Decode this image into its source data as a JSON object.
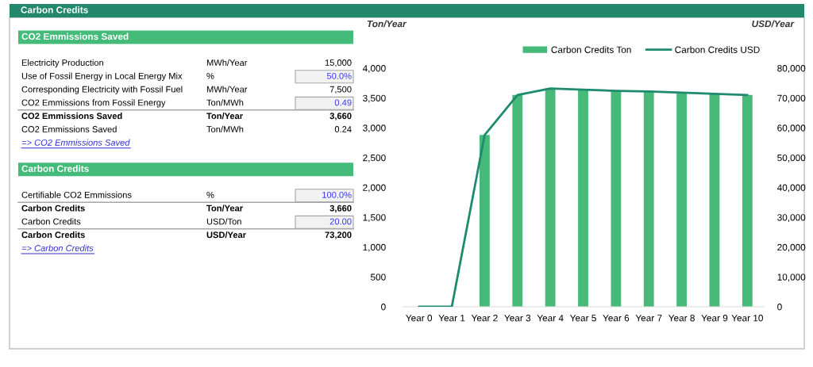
{
  "chart_data": [
    {
      "type": "other",
      "title": "Carbon Credits",
      "annotations": [
        "CO2 Emmissions Saved",
        "Electricity Production",
        "MWh/Year",
        "15,000",
        "Use of Fossil Energy in Local Energy Mix",
        "%",
        "50.0%",
        "Corresponding Electricity with Fossil Fuel",
        "MWh/Year",
        "7,500",
        "CO2 Emmissions from Fossil Energy",
        "Ton/MWh",
        "0.49",
        "CO2 Emmissions Saved",
        "Ton/Year",
        "3,660",
        "CO2 Emmissions Saved",
        "Ton/MWh",
        "0.24",
        "=> CO2 Emmissions Saved",
        "Carbon Credits",
        "Certifiable CO2 Emmissions",
        "%",
        "100.0%",
        "Carbon Credits",
        "Ton/Year",
        "3,660",
        "Carbon Credits",
        "USD/Ton",
        "20.00",
        "Carbon Credits",
        "USD/Year",
        "73,200",
        "=> Carbon Credits"
      ]
    },
    {
      "type": "bar",
      "ylabel": "Ton/Year",
      "y2label": "USD/Year",
      "categories": [
        "Year 0",
        "Year 1",
        "Year 2",
        "Year 3",
        "Year 4",
        "Year 5",
        "Year 6",
        "Year 7",
        "Year 8",
        "Year 9",
        "Year 10"
      ],
      "series": [
        {
          "name": "Carbon Credits Ton",
          "color": "#47ba79",
          "values": [
            0,
            0,
            2880,
            3550,
            3660,
            3640,
            3620,
            3610,
            3590,
            3570,
            3550
          ]
        },
        {
          "name": "Carbon Credits USD",
          "type": "line",
          "axis": "y2",
          "color": "#1e8a6e",
          "values": [
            0,
            0,
            57600,
            71000,
            73200,
            72800,
            72400,
            72200,
            71800,
            71400,
            71000
          ]
        }
      ],
      "ylim": [
        0,
        4000
      ],
      "yticks": [
        0,
        500,
        {
          "value": 1000,
          "label": "1,000"
        },
        {
          "value": 1500,
          "label": "1,500"
        },
        {
          "value": 2000,
          "label": "2,000"
        },
        {
          "value": 2500,
          "label": "2,500"
        },
        {
          "value": 3000,
          "label": "3,000"
        },
        {
          "value": 3500,
          "label": "3,500"
        },
        {
          "value": 4000,
          "label": "4,000"
        }
      ],
      "y2lim": [
        0,
        80000
      ],
      "y2ticks": [
        0,
        {
          "value": 10000,
          "label": "10,000"
        },
        {
          "value": 20000,
          "label": "20,000"
        },
        {
          "value": 30000,
          "label": "30,000"
        },
        {
          "value": 40000,
          "label": "40,000"
        },
        {
          "value": 50000,
          "label": "50,000"
        },
        {
          "value": 60000,
          "label": "60,000"
        },
        {
          "value": 70000,
          "label": "70,000"
        },
        {
          "value": 80000,
          "label": "80,000"
        }
      ],
      "legend": "top right"
    }
  ]
}
